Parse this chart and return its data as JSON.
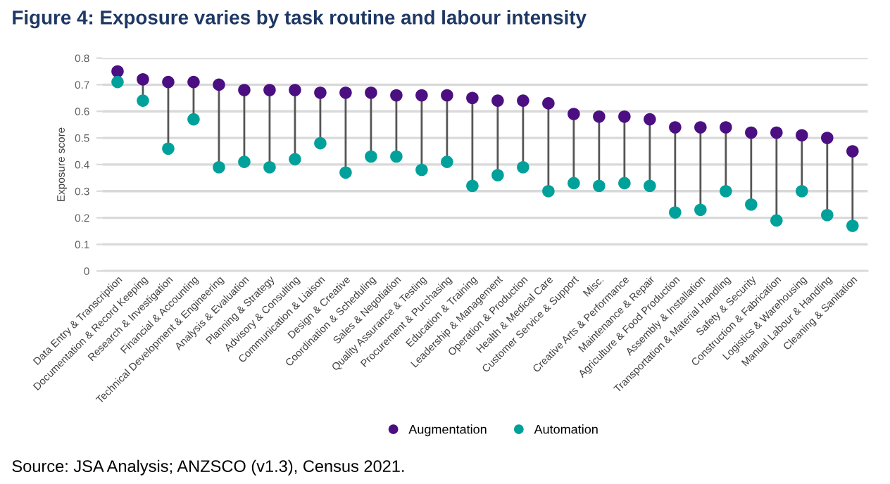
{
  "chart_data": {
    "type": "scatter",
    "title": "Figure 4: Exposure varies by task routine and labour intensity",
    "ylabel": "Exposure score",
    "categories": [
      "Data Entry & Transcription",
      "Documentation & Record Keeping",
      "Research & Investigation",
      "Financial & Accounting",
      "Technical Development & Engineering",
      "Analysis & Evaluation",
      "Planning & Strategy",
      "Advisory & Consulting",
      "Communication & Liaison",
      "Design & Creative",
      "Coordination & Scheduling",
      "Sales & Negotiation",
      "Quality Assurance & Testing",
      "Procurement & Purchasing",
      "Education & Training",
      "Leadership & Management",
      "Operation & Production",
      "Health & Medical Care",
      "Customer Service & Support",
      "Misc.",
      "Creative Arts & Performance",
      "Maintenance & Repair",
      "Agriculture & Food Production",
      "Assembly & Installation",
      "Transportation & Material Handling",
      "Safety & Security",
      "Construction & Fabrication",
      "Logistics & Warehousing",
      "Manual Labour & Handling",
      "Cleaning & Sanitation"
    ],
    "series": [
      {
        "name": "Augmentation",
        "color": "#4b0f82",
        "values": [
          0.75,
          0.72,
          0.71,
          0.71,
          0.7,
          0.68,
          0.68,
          0.68,
          0.67,
          0.67,
          0.67,
          0.66,
          0.66,
          0.66,
          0.65,
          0.64,
          0.64,
          0.63,
          0.59,
          0.58,
          0.58,
          0.57,
          0.54,
          0.54,
          0.54,
          0.52,
          0.52,
          0.51,
          0.5,
          0.45
        ]
      },
      {
        "name": "Automation",
        "color": "#00a19a",
        "values": [
          0.71,
          0.64,
          0.46,
          0.57,
          0.39,
          0.41,
          0.39,
          0.42,
          0.48,
          0.37,
          0.43,
          0.43,
          0.38,
          0.41,
          0.32,
          0.36,
          0.39,
          0.3,
          0.33,
          0.32,
          0.33,
          0.32,
          0.22,
          0.23,
          0.3,
          0.25,
          0.19,
          0.3,
          0.21,
          0.17
        ]
      }
    ],
    "ylim": [
      0,
      0.8
    ],
    "yticks": [
      0,
      0.1,
      0.2,
      0.3,
      0.4,
      0.5,
      0.6,
      0.7,
      0.8
    ],
    "grid": "y",
    "legend": "bottom",
    "marker": "circle",
    "annotations": [
      "Source: JSA Analysis; ANZSCO (v1.3), Census 2021."
    ]
  }
}
